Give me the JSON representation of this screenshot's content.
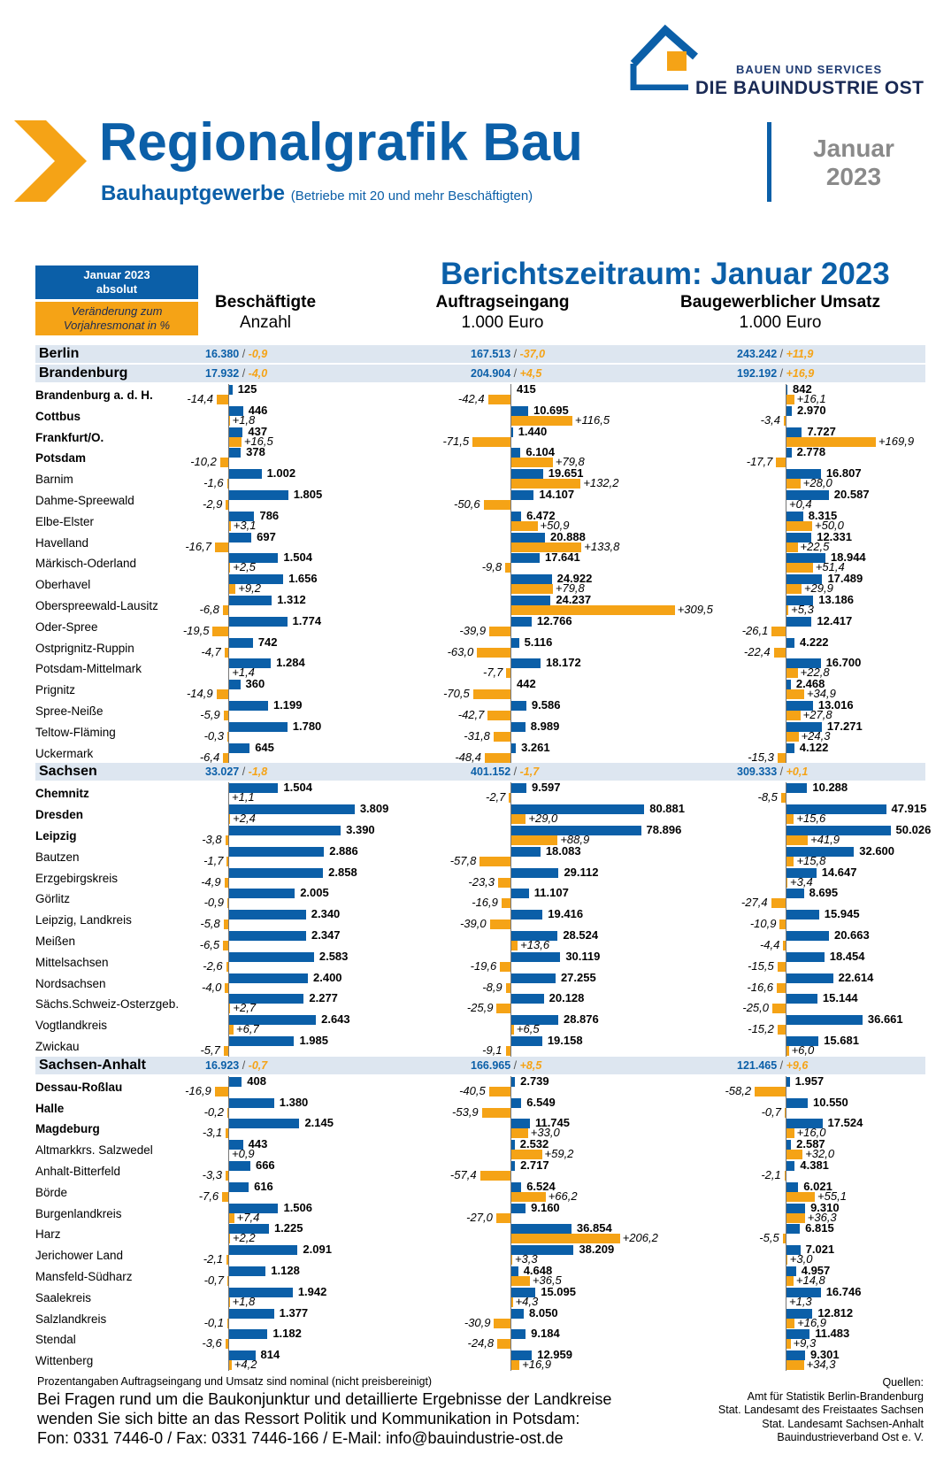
{
  "logo": {
    "line1": "BAUEN UND SERVICES",
    "line2": "DIE BAUINDUSTRIE OST"
  },
  "header": {
    "title": "Regionalgrafik Bau",
    "subtitle": "Bauhauptgewerbe",
    "subtitle_note": "(Betriebe mit 20 und mehr Beschäftigten)",
    "month": "Januar",
    "year": "2023",
    "period": "Berichtszeitraum: Januar 2023"
  },
  "legend": {
    "absolute_line1": "Januar 2023",
    "absolute_line2": "absolut",
    "change_line1": "Veränderung zum",
    "change_line2": "Vorjahresmonat in %",
    "color_abs": "#0b5fa8",
    "color_change": "#f5a316"
  },
  "chart_data": {
    "type": "bar",
    "columns": [
      {
        "title": "Beschäftigte",
        "unit": "Anzahl"
      },
      {
        "title": "Auftragseingang",
        "unit": "1.000 Euro"
      },
      {
        "title": "Baugewerblicher Umsatz",
        "unit": "1.000 Euro"
      }
    ],
    "rows": [
      {
        "kind": "region",
        "name": "Berlin",
        "values": [
          "16.380",
          "167.513",
          "243.242"
        ],
        "changes": [
          "-0,9",
          "-37,0",
          "+11,9"
        ]
      },
      {
        "kind": "region",
        "name": "Brandenburg",
        "values": [
          "17.932",
          "204.904",
          "192.192"
        ],
        "changes": [
          "-4,0",
          "+4,5",
          "+16,9"
        ]
      },
      {
        "kind": "district",
        "city": true,
        "name": "Brandenburg a. d. H.",
        "values": [
          "125",
          "415",
          "842"
        ],
        "changes": [
          "-14,4",
          "-42,4",
          "+16,1"
        ]
      },
      {
        "kind": "district",
        "city": true,
        "name": "Cottbus",
        "values": [
          "446",
          "10.695",
          "2.970"
        ],
        "changes": [
          "+1,8",
          "+116,5",
          "-3,4"
        ]
      },
      {
        "kind": "district",
        "city": true,
        "name": "Frankfurt/O.",
        "values": [
          "437",
          "1.440",
          "7.727"
        ],
        "changes": [
          "+16,5",
          "-71,5",
          "+169,9"
        ]
      },
      {
        "kind": "district",
        "city": true,
        "name": "Potsdam",
        "values": [
          "378",
          "6.104",
          "2.778"
        ],
        "changes": [
          "-10,2",
          "+79,8",
          "-17,7"
        ]
      },
      {
        "kind": "district",
        "city": false,
        "name": "Barnim",
        "values": [
          "1.002",
          "19.651",
          "16.807"
        ],
        "changes": [
          "-1,6",
          "+132,2",
          "+28,0"
        ]
      },
      {
        "kind": "district",
        "city": false,
        "name": "Dahme-Spreewald",
        "values": [
          "1.805",
          "14.107",
          "20.587"
        ],
        "changes": [
          "-2,9",
          "-50,6",
          "+0,4"
        ]
      },
      {
        "kind": "district",
        "city": false,
        "name": "Elbe-Elster",
        "values": [
          "786",
          "6.472",
          "8.315"
        ],
        "changes": [
          "+3,1",
          "+50,9",
          "+50,0"
        ]
      },
      {
        "kind": "district",
        "city": false,
        "name": "Havelland",
        "values": [
          "697",
          "20.888",
          "12.331"
        ],
        "changes": [
          "-16,7",
          "+133,8",
          "+22,5"
        ]
      },
      {
        "kind": "district",
        "city": false,
        "name": "Märkisch-Oderland",
        "values": [
          "1.504",
          "17.641",
          "18.944"
        ],
        "changes": [
          "+2,5",
          "-9,8",
          "+51,4"
        ]
      },
      {
        "kind": "district",
        "city": false,
        "name": "Oberhavel",
        "values": [
          "1.656",
          "24.922",
          "17.489"
        ],
        "changes": [
          "+9,2",
          "+79,8",
          "+29,9"
        ]
      },
      {
        "kind": "district",
        "city": false,
        "name": "Oberspreewald-Lausitz",
        "values": [
          "1.312",
          "24.237",
          "13.186"
        ],
        "changes": [
          "-6,8",
          "+309,5",
          "+5,3"
        ]
      },
      {
        "kind": "district",
        "city": false,
        "name": "Oder-Spree",
        "values": [
          "1.774",
          "12.766",
          "12.417"
        ],
        "changes": [
          "-19,5",
          "-39,9",
          "-26,1"
        ]
      },
      {
        "kind": "district",
        "city": false,
        "name": "Ostprignitz-Ruppin",
        "values": [
          "742",
          "5.116",
          "4.222"
        ],
        "changes": [
          "-4,7",
          "-63,0",
          "-22,4"
        ]
      },
      {
        "kind": "district",
        "city": false,
        "name": "Potsdam-Mittelmark",
        "values": [
          "1.284",
          "18.172",
          "16.700"
        ],
        "changes": [
          "+1,4",
          "-7,7",
          "+22,8"
        ]
      },
      {
        "kind": "district",
        "city": false,
        "name": "Prignitz",
        "values": [
          "360",
          "442",
          "2.468"
        ],
        "changes": [
          "-14,9",
          "-70,5",
          "+34,9"
        ]
      },
      {
        "kind": "district",
        "city": false,
        "name": "Spree-Neiße",
        "values": [
          "1.199",
          "9.586",
          "13.016"
        ],
        "changes": [
          "-5,9",
          "-42,7",
          "+27,8"
        ]
      },
      {
        "kind": "district",
        "city": false,
        "name": "Teltow-Fläming",
        "values": [
          "1.780",
          "8.989",
          "17.271"
        ],
        "changes": [
          "-0,3",
          "-31,8",
          "+24,3"
        ]
      },
      {
        "kind": "district",
        "city": false,
        "name": "Uckermark",
        "values": [
          "645",
          "3.261",
          "4.122"
        ],
        "changes": [
          "-6,4",
          "-48,4",
          "-15,3"
        ]
      },
      {
        "kind": "region",
        "name": "Sachsen",
        "values": [
          "33.027",
          "401.152",
          "309.333"
        ],
        "changes": [
          "-1,8",
          "-1,7",
          "+0,1"
        ]
      },
      {
        "kind": "district",
        "city": true,
        "name": "Chemnitz",
        "values": [
          "1.504",
          "9.597",
          "10.288"
        ],
        "changes": [
          "+1,1",
          "-2,7",
          "-8,5"
        ]
      },
      {
        "kind": "district",
        "city": true,
        "name": "Dresden",
        "values": [
          "3.809",
          "80.881",
          "47.915"
        ],
        "changes": [
          "+2,4",
          "+29,0",
          "+15,6"
        ]
      },
      {
        "kind": "district",
        "city": true,
        "name": "Leipzig",
        "values": [
          "3.390",
          "78.896",
          "50.026"
        ],
        "changes": [
          "-3,8",
          "+88,9",
          "+41,9"
        ]
      },
      {
        "kind": "district",
        "city": false,
        "name": "Bautzen",
        "values": [
          "2.886",
          "18.083",
          "32.600"
        ],
        "changes": [
          "-1,7",
          "-57,8",
          "+15,8"
        ]
      },
      {
        "kind": "district",
        "city": false,
        "name": "Erzgebirgskreis",
        "values": [
          "2.858",
          "29.112",
          "14.647"
        ],
        "changes": [
          "-4,9",
          "-23,3",
          "+3,4"
        ]
      },
      {
        "kind": "district",
        "city": false,
        "name": "Görlitz",
        "values": [
          "2.005",
          "11.107",
          "8.695"
        ],
        "changes": [
          "-0,9",
          "-16,9",
          "-27,4"
        ]
      },
      {
        "kind": "district",
        "city": false,
        "name": "Leipzig, Landkreis",
        "values": [
          "2.340",
          "19.416",
          "15.945"
        ],
        "changes": [
          "-5,8",
          "-39,0",
          "-10,9"
        ]
      },
      {
        "kind": "district",
        "city": false,
        "name": "Meißen",
        "values": [
          "2.347",
          "28.524",
          "20.663"
        ],
        "changes": [
          "-6,5",
          "+13,6",
          "-4,4"
        ]
      },
      {
        "kind": "district",
        "city": false,
        "name": "Mittelsachsen",
        "values": [
          "2.583",
          "30.119",
          "18.454"
        ],
        "changes": [
          "-2,6",
          "-19,6",
          "-15,5"
        ]
      },
      {
        "kind": "district",
        "city": false,
        "name": "Nordsachsen",
        "values": [
          "2.400",
          "27.255",
          "22.614"
        ],
        "changes": [
          "-4,0",
          "-8,9",
          "-16,6"
        ]
      },
      {
        "kind": "district",
        "city": false,
        "name": "Sächs.Schweiz-Osterzgeb.",
        "values": [
          "2.277",
          "20.128",
          "15.144"
        ],
        "changes": [
          "+2,7",
          "-25,9",
          "-25,0"
        ]
      },
      {
        "kind": "district",
        "city": false,
        "name": "Vogtlandkreis",
        "values": [
          "2.643",
          "28.876",
          "36.661"
        ],
        "changes": [
          "+6,7",
          "+6,5",
          "-15,2"
        ]
      },
      {
        "kind": "district",
        "city": false,
        "name": "Zwickau",
        "values": [
          "1.985",
          "19.158",
          "15.681"
        ],
        "changes": [
          "-5,7",
          "-9,1",
          "+6,0"
        ]
      },
      {
        "kind": "region",
        "name": "Sachsen-Anhalt",
        "values": [
          "16.923",
          "166.965",
          "121.465"
        ],
        "changes": [
          "-0,7",
          "+8,5",
          "+9,6"
        ]
      },
      {
        "kind": "district",
        "city": true,
        "name": "Dessau-Roßlau",
        "values": [
          "408",
          "2.739",
          "1.957"
        ],
        "changes": [
          "-16,9",
          "-40,5",
          "-58,2"
        ]
      },
      {
        "kind": "district",
        "city": true,
        "name": "Halle",
        "values": [
          "1.380",
          "6.549",
          "10.550"
        ],
        "changes": [
          "-0,2",
          "-53,9",
          "-0,7"
        ]
      },
      {
        "kind": "district",
        "city": true,
        "name": "Magdeburg",
        "values": [
          "2.145",
          "11.745",
          "17.524"
        ],
        "changes": [
          "-3,1",
          "+33,0",
          "+16,0"
        ]
      },
      {
        "kind": "district",
        "city": false,
        "name": "Altmarkkrs. Salzwedel",
        "values": [
          "443",
          "2.532",
          "2.587"
        ],
        "changes": [
          "+0,9",
          "+59,2",
          "+32,0"
        ]
      },
      {
        "kind": "district",
        "city": false,
        "name": "Anhalt-Bitterfeld",
        "values": [
          "666",
          "2.717",
          "4.381"
        ],
        "changes": [
          "-3,3",
          "-57,4",
          "-2,1"
        ]
      },
      {
        "kind": "district",
        "city": false,
        "name": "Börde",
        "values": [
          "616",
          "6.524",
          "6.021"
        ],
        "changes": [
          "-7,6",
          "+66,2",
          "+55,1"
        ]
      },
      {
        "kind": "district",
        "city": false,
        "name": "Burgenlandkreis",
        "values": [
          "1.506",
          "9.160",
          "9.310"
        ],
        "changes": [
          "+7,4",
          "-27,0",
          "+36,3"
        ]
      },
      {
        "kind": "district",
        "city": false,
        "name": "Harz",
        "values": [
          "1.225",
          "36.854",
          "6.815"
        ],
        "changes": [
          "+2,2",
          "+206,2",
          "-5,5"
        ]
      },
      {
        "kind": "district",
        "city": false,
        "name": "Jerichower Land",
        "values": [
          "2.091",
          "38.209",
          "7.021"
        ],
        "changes": [
          "-2,1",
          "+3,3",
          "+3,0"
        ]
      },
      {
        "kind": "district",
        "city": false,
        "name": "Mansfeld-Südharz",
        "values": [
          "1.128",
          "4.648",
          "4.957"
        ],
        "changes": [
          "-0,7",
          "+36,5",
          "+14,8"
        ]
      },
      {
        "kind": "district",
        "city": false,
        "name": "Saalekreis",
        "values": [
          "1.942",
          "15.095",
          "16.746"
        ],
        "changes": [
          "+1,8",
          "+4,3",
          "+1,3"
        ]
      },
      {
        "kind": "district",
        "city": false,
        "name": "Salzlandkreis",
        "values": [
          "1.377",
          "8.050",
          "12.812"
        ],
        "changes": [
          "-0,1",
          "-30,9",
          "+16,9"
        ]
      },
      {
        "kind": "district",
        "city": false,
        "name": "Stendal",
        "values": [
          "1.182",
          "9.184",
          "11.483"
        ],
        "changes": [
          "-3,6",
          "-24,8",
          "+9,3"
        ]
      },
      {
        "kind": "district",
        "city": false,
        "name": "Wittenberg",
        "values": [
          "814",
          "12.959",
          "9.301"
        ],
        "changes": [
          "+4,2",
          "+16,9",
          "+34,3"
        ]
      }
    ]
  },
  "footer": {
    "note": "Prozentangaben Auftragseingang und Umsatz sind nominal (nicht preisbereinigt)",
    "line1": "Bei Fragen rund um die Baukonjunktur und detaillierte Ergebnisse der Landkreise",
    "line2": "wenden Sie sich bitte an das Ressort Politik und Kommunikation in Potsdam:",
    "line3": "Fon: 0331 7446-0 / Fax: 0331 7446-166 / E-Mail: info@bauindustrie-ost.de",
    "sources_title": "Quellen:",
    "sources": [
      "Amt für Statistik Berlin-Brandenburg",
      "Stat. Landesamt des Freistaates Sachsen",
      "Stat. Landesamt Sachsen-Anhalt",
      "Bauindustrieverband Ost e. V."
    ]
  }
}
